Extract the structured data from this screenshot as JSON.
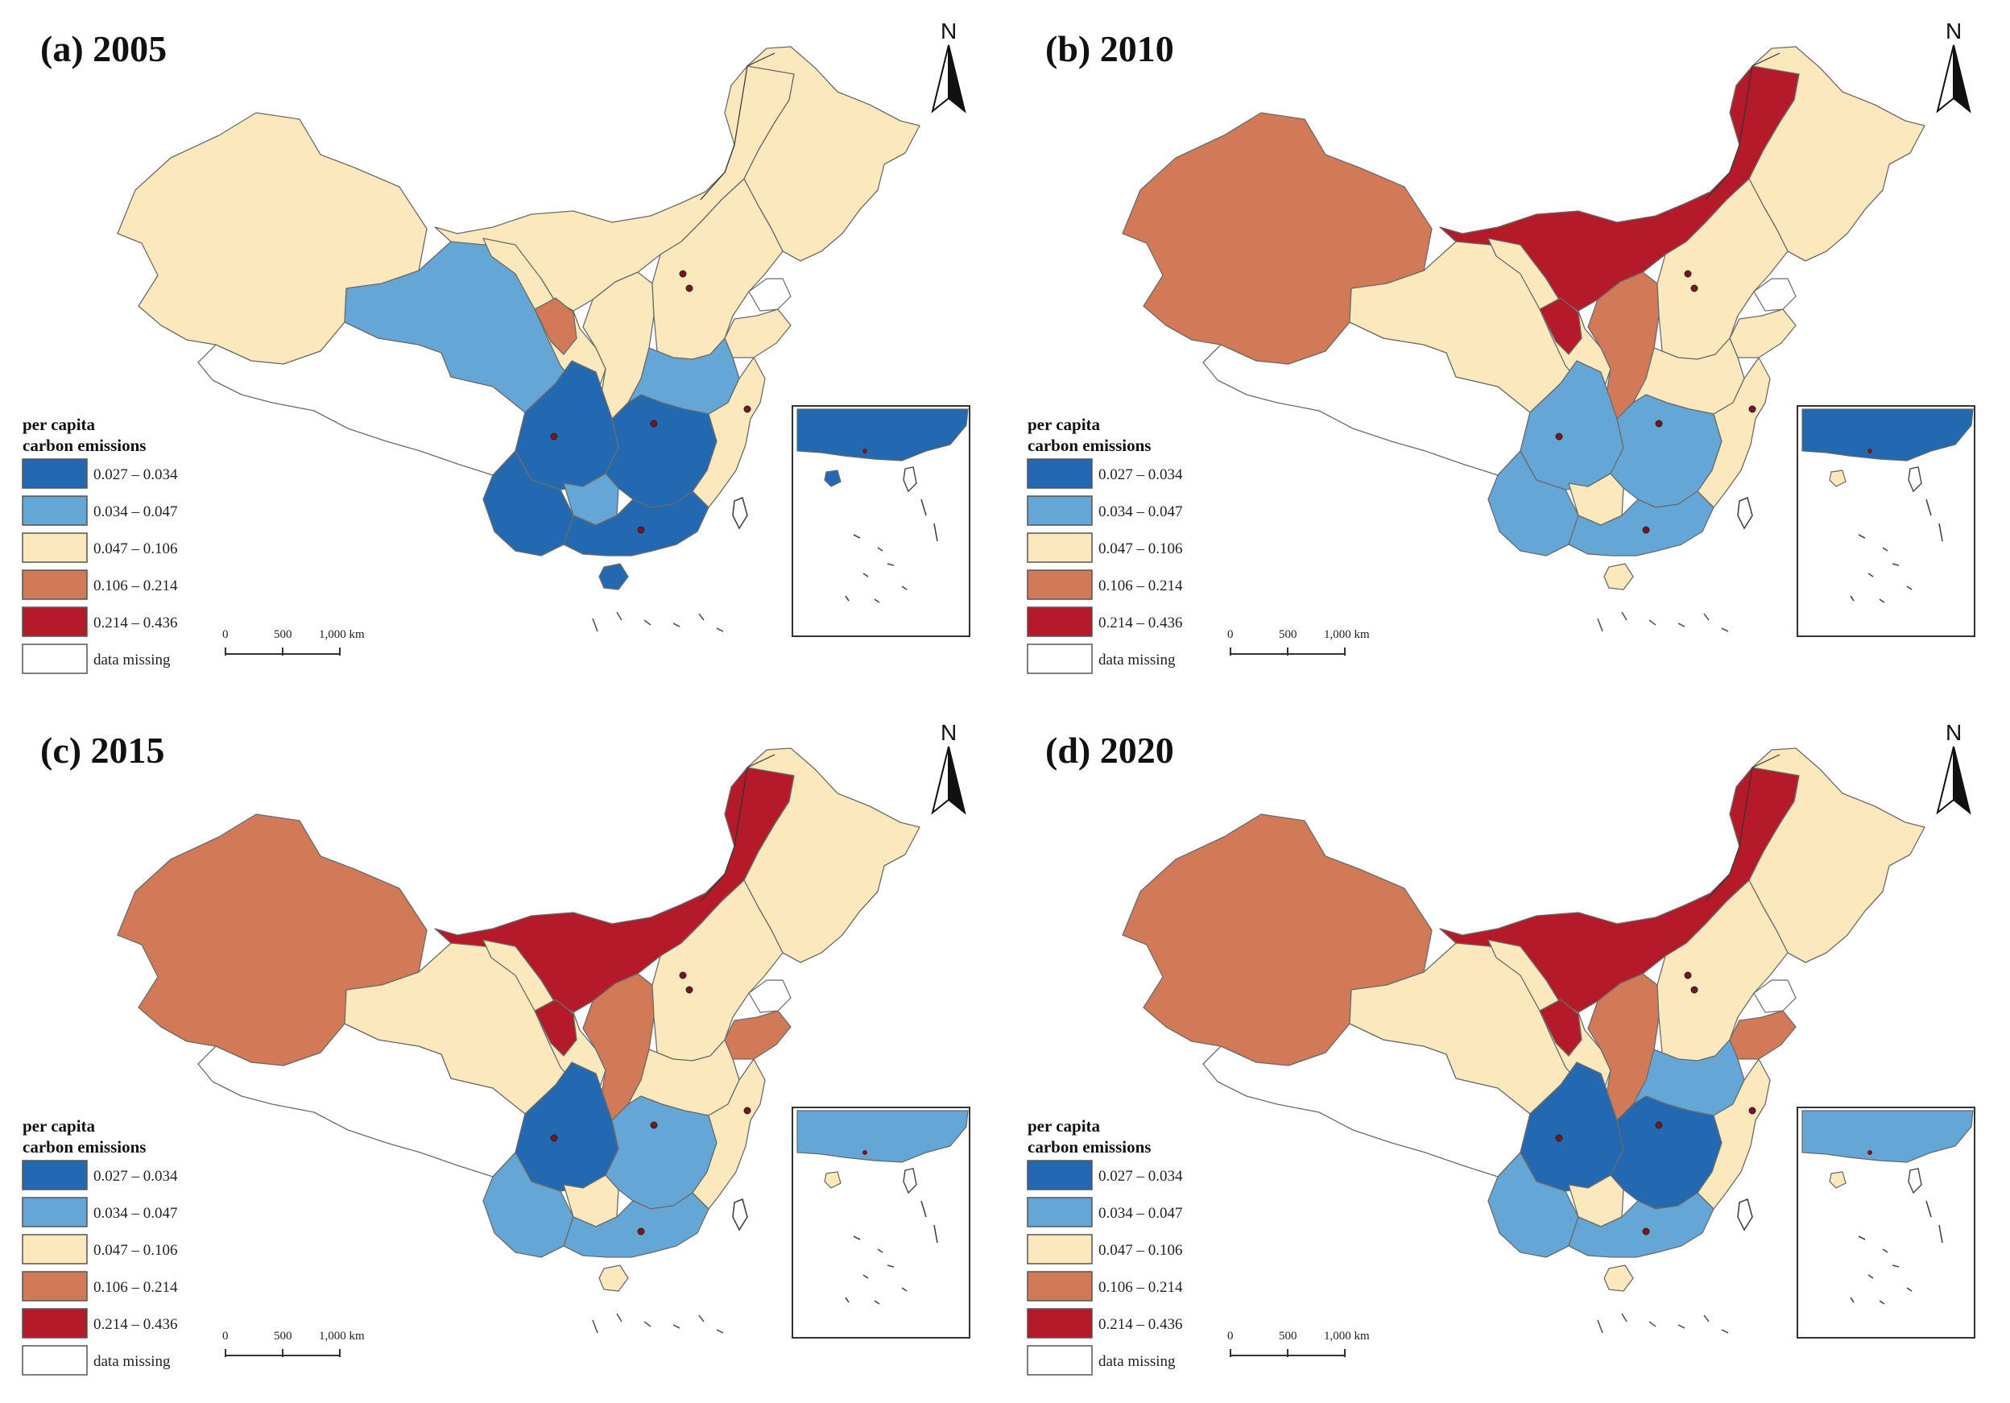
{
  "figure": {
    "north_label": "N",
    "legend_title_line1": "per capita",
    "legend_title_line2": "carbon emissions",
    "scale_ticks": [
      "0",
      "500",
      "1,000 km"
    ]
  },
  "classes": [
    {
      "label": "0.027 – 0.034",
      "color": "#2369b2"
    },
    {
      "label": "0.034 – 0.047",
      "color": "#64a6d6"
    },
    {
      "label": "0.047 – 0.106",
      "color": "#fbe8bc"
    },
    {
      "label": "0.106 – 0.214",
      "color": "#d27a58"
    },
    {
      "label": "0.214 – 0.436",
      "color": "#b41a2a"
    },
    {
      "label": "data missing",
      "color": "#ffffff"
    }
  ],
  "panels": [
    {
      "title": "(a) 2005",
      "year": 2005,
      "regions": {
        "northeast": 2,
        "inner_mongolia": 2,
        "xinjiang": 2,
        "qinghai": 1,
        "gansu": 2,
        "ningxia": 3,
        "north_china": 2,
        "shaanxi": 2,
        "sichuan": 0,
        "guizhou": 1,
        "yunnan": 0,
        "central": 0,
        "henan_anhui": 1,
        "shandong": 2,
        "east_coast": 2,
        "guangdong": 0,
        "hainan": 0,
        "tibet": 5,
        "inset": 0
      }
    },
    {
      "title": "(b) 2010",
      "year": 2010,
      "regions": {
        "northeast": 2,
        "inner_mongolia": 4,
        "xinjiang": 3,
        "qinghai": 2,
        "gansu": 2,
        "ningxia": 4,
        "north_china": 2,
        "shaanxi": 3,
        "sichuan": 1,
        "guizhou": 2,
        "yunnan": 1,
        "central": 1,
        "henan_anhui": 2,
        "shandong": 2,
        "east_coast": 2,
        "guangdong": 1,
        "hainan": 2,
        "tibet": 5,
        "inset": 0
      }
    },
    {
      "title": "(c) 2015",
      "year": 2015,
      "regions": {
        "northeast": 2,
        "inner_mongolia": 4,
        "xinjiang": 3,
        "qinghai": 2,
        "gansu": 2,
        "ningxia": 4,
        "north_china": 2,
        "shaanxi": 3,
        "sichuan": 0,
        "guizhou": 2,
        "yunnan": 1,
        "central": 1,
        "henan_anhui": 2,
        "shandong": 3,
        "east_coast": 2,
        "guangdong": 1,
        "hainan": 2,
        "tibet": 5,
        "inset": 1
      }
    },
    {
      "title": "(d) 2020",
      "year": 2020,
      "regions": {
        "northeast": 2,
        "inner_mongolia": 4,
        "xinjiang": 3,
        "qinghai": 2,
        "gansu": 2,
        "ningxia": 4,
        "north_china": 2,
        "shaanxi": 3,
        "sichuan": 0,
        "guizhou": 2,
        "yunnan": 1,
        "central": 0,
        "henan_anhui": 1,
        "shandong": 3,
        "east_coast": 2,
        "guangdong": 1,
        "hainan": 2,
        "tibet": 5,
        "inset": 1
      }
    }
  ]
}
